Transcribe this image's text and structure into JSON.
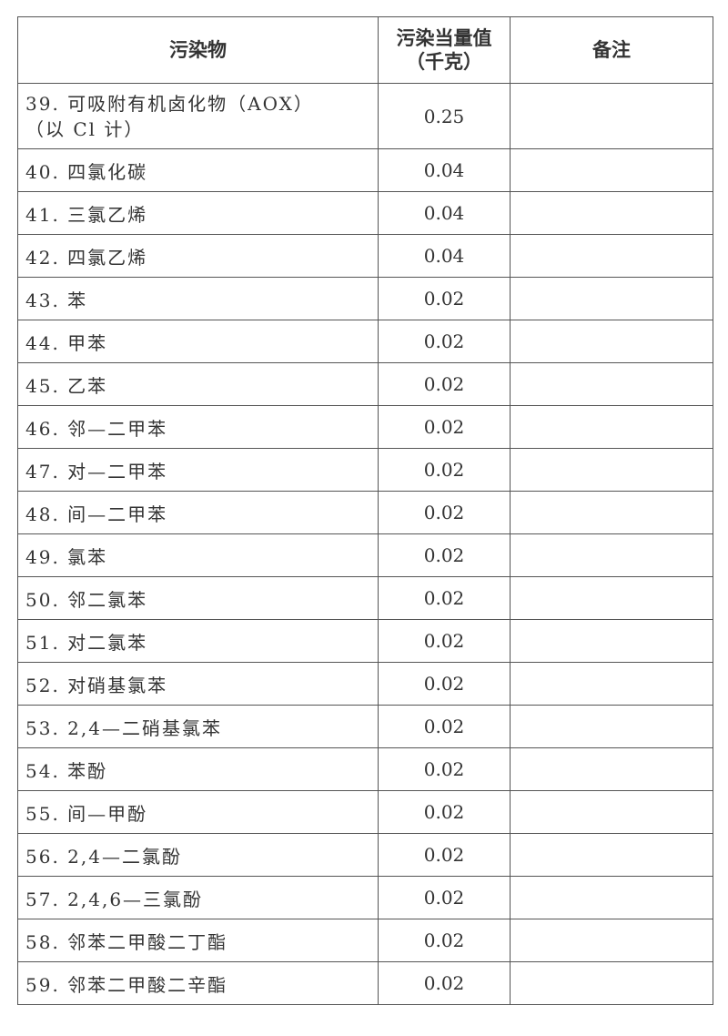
{
  "headers": {
    "pollutant": "污染物",
    "value_line1": "污染当量值",
    "value_line2": "（千克）",
    "remark": "备注"
  },
  "rows": [
    {
      "name": "39. 可吸附有机卤化物（AOX）",
      "name2": "（以 Cl 计）",
      "value": "0.25",
      "remark": ""
    },
    {
      "name": "40. 四氯化碳",
      "value": "0.04",
      "remark": ""
    },
    {
      "name": "41. 三氯乙烯",
      "value": "0.04",
      "remark": ""
    },
    {
      "name": "42. 四氯乙烯",
      "value": "0.04",
      "remark": ""
    },
    {
      "name": "43. 苯",
      "value": "0.02",
      "remark": ""
    },
    {
      "name": "44. 甲苯",
      "value": "0.02",
      "remark": ""
    },
    {
      "name": "45. 乙苯",
      "value": "0.02",
      "remark": ""
    },
    {
      "name": "46. 邻—二甲苯",
      "value": "0.02",
      "remark": ""
    },
    {
      "name": "47. 对—二甲苯",
      "value": "0.02",
      "remark": ""
    },
    {
      "name": "48. 间—二甲苯",
      "value": "0.02",
      "remark": ""
    },
    {
      "name": "49. 氯苯",
      "value": "0.02",
      "remark": ""
    },
    {
      "name": "50. 邻二氯苯",
      "value": "0.02",
      "remark": ""
    },
    {
      "name": "51. 对二氯苯",
      "value": "0.02",
      "remark": ""
    },
    {
      "name": "52. 对硝基氯苯",
      "value": "0.02",
      "remark": ""
    },
    {
      "name": "53. 2,4—二硝基氯苯",
      "value": "0.02",
      "remark": ""
    },
    {
      "name": "54. 苯酚",
      "value": "0.02",
      "remark": ""
    },
    {
      "name": "55. 间—甲酚",
      "value": "0.02",
      "remark": ""
    },
    {
      "name": "56. 2,4—二氯酚",
      "value": "0.02",
      "remark": ""
    },
    {
      "name": "57. 2,4,6—三氯酚",
      "value": "0.02",
      "remark": ""
    },
    {
      "name": "58. 邻苯二甲酸二丁酯",
      "value": "0.02",
      "remark": ""
    },
    {
      "name": "59. 邻苯二甲酸二辛酯",
      "value": "0.02",
      "remark": ""
    }
  ]
}
